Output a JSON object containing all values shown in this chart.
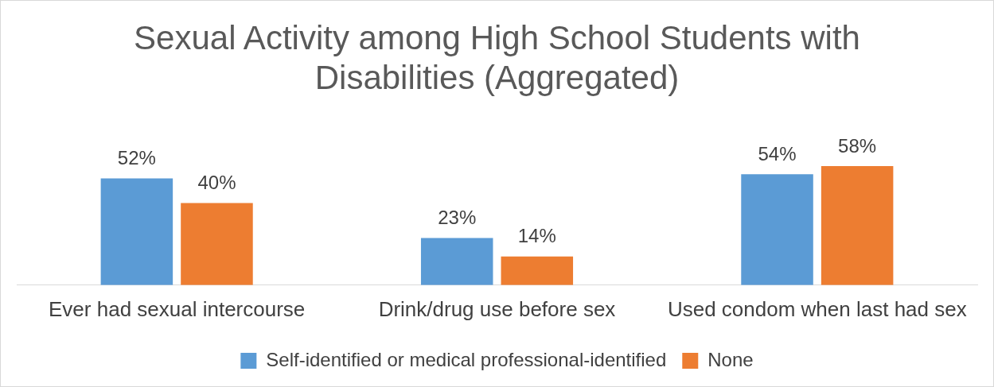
{
  "chart_data": {
    "type": "bar",
    "title": "Sexual Activity among High School Students with Disabilities (Aggregated)",
    "categories": [
      "Ever had sexual intercourse",
      "Drink/drug use before sex",
      "Used condom when last had sex"
    ],
    "series": [
      {
        "name": "Self-identified or medical professional-identified",
        "color": "#5b9bd5",
        "values": [
          52,
          23,
          54
        ],
        "value_labels": [
          "52%",
          "23%",
          "54%"
        ]
      },
      {
        "name": "None",
        "color": "#ed7d31",
        "values": [
          40,
          14,
          58
        ],
        "value_labels": [
          "40%",
          "14%",
          "58%"
        ]
      }
    ],
    "legend": "bottom",
    "grid": false
  }
}
